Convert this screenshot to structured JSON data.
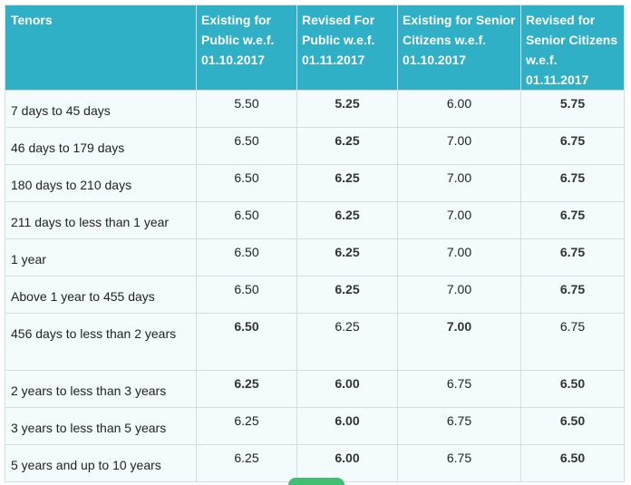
{
  "headers": [
    "Tenors",
    "Existing for Public w.e.f. 01.10.2017",
    "Revised For Public w.e.f. 01.11.2017",
    "Existing for Senior Citizens w.e.f. 01.10.2017",
    "Revised for Senior Citizens w.e.f. 01.11.2017"
  ],
  "rows": [
    {
      "tenor": "7 days to 45 days",
      "v": [
        "5.50",
        "5.25",
        "6.00",
        "5.75"
      ],
      "bold": [
        false,
        true,
        false,
        true
      ]
    },
    {
      "tenor": "46 days to 179 days",
      "v": [
        "6.50",
        "6.25",
        "7.00",
        "6.75"
      ],
      "bold": [
        false,
        true,
        false,
        true
      ]
    },
    {
      "tenor": "180 days to 210 days",
      "v": [
        "6.50",
        "6.25",
        "7.00",
        "6.75"
      ],
      "bold": [
        false,
        true,
        false,
        true
      ]
    },
    {
      "tenor": "211 days to less than 1 year",
      "v": [
        "6.50",
        "6.25",
        "7.00",
        "6.75"
      ],
      "bold": [
        false,
        true,
        false,
        true
      ]
    },
    {
      "tenor": "1 year",
      "v": [
        "6.50",
        "6.25",
        "7.00",
        "6.75"
      ],
      "bold": [
        false,
        true,
        false,
        true
      ]
    },
    {
      "tenor": "Above 1 year to 455 days",
      "v": [
        "6.50",
        "6.25",
        "7.00",
        "6.75"
      ],
      "bold": [
        false,
        true,
        false,
        true
      ]
    },
    {
      "tenor": "456 days to less than 2 years",
      "v": [
        "6.50",
        "6.25",
        "7.00",
        "6.75"
      ],
      "bold": [
        true,
        false,
        true,
        false
      ]
    },
    {
      "tenor": "2 years to less than 3 years",
      "v": [
        "6.25",
        "6.00",
        "6.75",
        "6.50"
      ],
      "bold": [
        true,
        true,
        false,
        true
      ]
    },
    {
      "tenor": "3 years to less than 5 years",
      "v": [
        "6.25",
        "6.00",
        "6.75",
        "6.50"
      ],
      "bold": [
        false,
        true,
        false,
        true
      ]
    },
    {
      "tenor": "5 years and up to 10 years",
      "v": [
        "6.25",
        "6.00",
        "6.75",
        "6.50"
      ],
      "bold": [
        false,
        true,
        false,
        true
      ]
    }
  ]
}
